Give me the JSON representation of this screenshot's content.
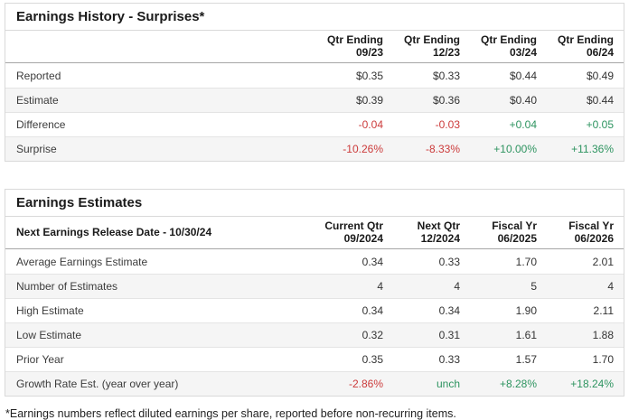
{
  "colors": {
    "positive": "#2e9460",
    "negative": "#cc3b3b"
  },
  "surprises_table": {
    "title": "Earnings History - Surprises*",
    "columns": [
      {
        "line1": "Qtr Ending",
        "line2": "09/23"
      },
      {
        "line1": "Qtr Ending",
        "line2": "12/23"
      },
      {
        "line1": "Qtr Ending",
        "line2": "03/24"
      },
      {
        "line1": "Qtr Ending",
        "line2": "06/24"
      }
    ],
    "rows": [
      {
        "label": "Reported",
        "values": [
          "$0.35",
          "$0.33",
          "$0.44",
          "$0.49"
        ]
      },
      {
        "label": "Estimate",
        "values": [
          "$0.39",
          "$0.36",
          "$0.40",
          "$0.44"
        ]
      },
      {
        "label": "Difference",
        "values": [
          "-0.04",
          "-0.03",
          "+0.04",
          "+0.05"
        ],
        "tones": [
          "negative",
          "negative",
          "positive",
          "positive"
        ]
      },
      {
        "label": "Surprise",
        "values": [
          "-10.26%",
          "-8.33%",
          "+10.00%",
          "+11.36%"
        ],
        "tones": [
          "negative",
          "negative",
          "positive",
          "positive"
        ]
      }
    ]
  },
  "estimates_table": {
    "title": "Earnings Estimates",
    "header_label": "Next Earnings Release Date - 10/30/24",
    "columns": [
      {
        "line1": "Current Qtr",
        "line2": "09/2024"
      },
      {
        "line1": "Next Qtr",
        "line2": "12/2024"
      },
      {
        "line1": "Fiscal Yr",
        "line2": "06/2025"
      },
      {
        "line1": "Fiscal Yr",
        "line2": "06/2026"
      }
    ],
    "rows": [
      {
        "label": "Average Earnings Estimate",
        "values": [
          "0.34",
          "0.33",
          "1.70",
          "2.01"
        ]
      },
      {
        "label": "Number of Estimates",
        "values": [
          "4",
          "4",
          "5",
          "4"
        ]
      },
      {
        "label": "High Estimate",
        "values": [
          "0.34",
          "0.34",
          "1.90",
          "2.11"
        ]
      },
      {
        "label": "Low Estimate",
        "values": [
          "0.32",
          "0.31",
          "1.61",
          "1.88"
        ]
      },
      {
        "label": "Prior Year",
        "values": [
          "0.35",
          "0.33",
          "1.57",
          "1.70"
        ]
      },
      {
        "label": "Growth Rate Est. (year over year)",
        "values": [
          "-2.86%",
          "unch",
          "+8.28%",
          "+18.24%"
        ],
        "tones": [
          "negative",
          "positive",
          "positive",
          "positive"
        ]
      }
    ]
  },
  "footnote": "*Earnings numbers reflect diluted earnings per share, reported before non-recurring items."
}
